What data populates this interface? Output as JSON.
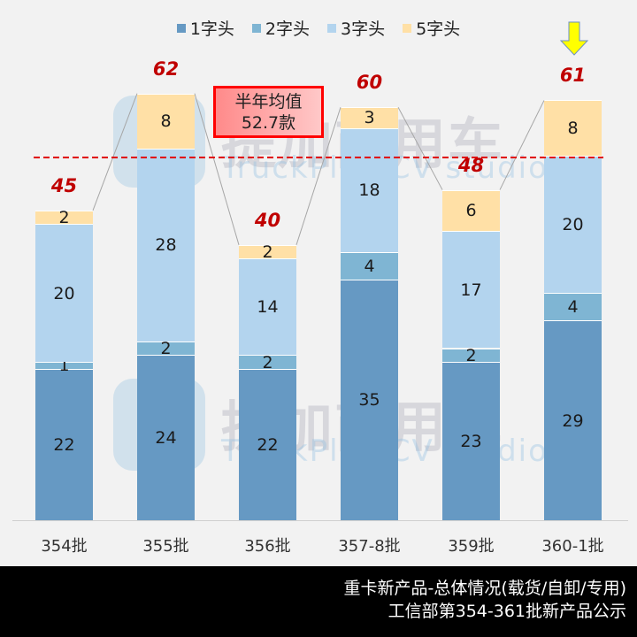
{
  "legend": [
    {
      "label": "1字头",
      "color": "#6699c3"
    },
    {
      "label": "2字头",
      "color": "#7fb5d3"
    },
    {
      "label": "3字头",
      "color": "#b3d4ee"
    },
    {
      "label": "5字头",
      "color": "#ffe0a6"
    }
  ],
  "average_box": {
    "line1": "半年均值",
    "line2": "52.7款"
  },
  "watermark": {
    "cn": "提加商用车",
    "en": "TruckPlus CV studio"
  },
  "footer": {
    "line1": "重卡新产品-总体情况(载货/自卸/专用)",
    "line2": "工信部第354-361批新产品公示"
  },
  "chart_data": {
    "type": "bar",
    "stacked": true,
    "title": "重卡新产品-总体情况(载货/自卸/专用)",
    "subtitle": "工信部第354-361批新产品公示",
    "categories": [
      "354批",
      "355批",
      "356批",
      "357-8批",
      "359批",
      "360-1批"
    ],
    "series": [
      {
        "name": "1字头",
        "color": "#6699c3",
        "values": [
          22,
          24,
          22,
          35,
          23,
          29
        ]
      },
      {
        "name": "2字头",
        "color": "#7fb5d3",
        "values": [
          1,
          2,
          2,
          4,
          2,
          4
        ]
      },
      {
        "name": "3字头",
        "color": "#b3d4ee",
        "values": [
          20,
          28,
          14,
          18,
          17,
          20
        ]
      },
      {
        "name": "5字头",
        "color": "#ffe0a6",
        "values": [
          2,
          8,
          2,
          3,
          6,
          8
        ]
      }
    ],
    "totals": [
      45,
      62,
      40,
      60,
      48,
      61
    ],
    "average_line": {
      "value": 52.7,
      "label": "半年均值 52.7款",
      "color": "#e00000",
      "style": "dashed"
    },
    "highlight": {
      "category": "360-1批",
      "marker": "yellow-down-arrow"
    },
    "xlabel": "",
    "ylabel": "",
    "ylim": [
      0,
      70
    ],
    "grid": false,
    "legend_position": "top"
  }
}
